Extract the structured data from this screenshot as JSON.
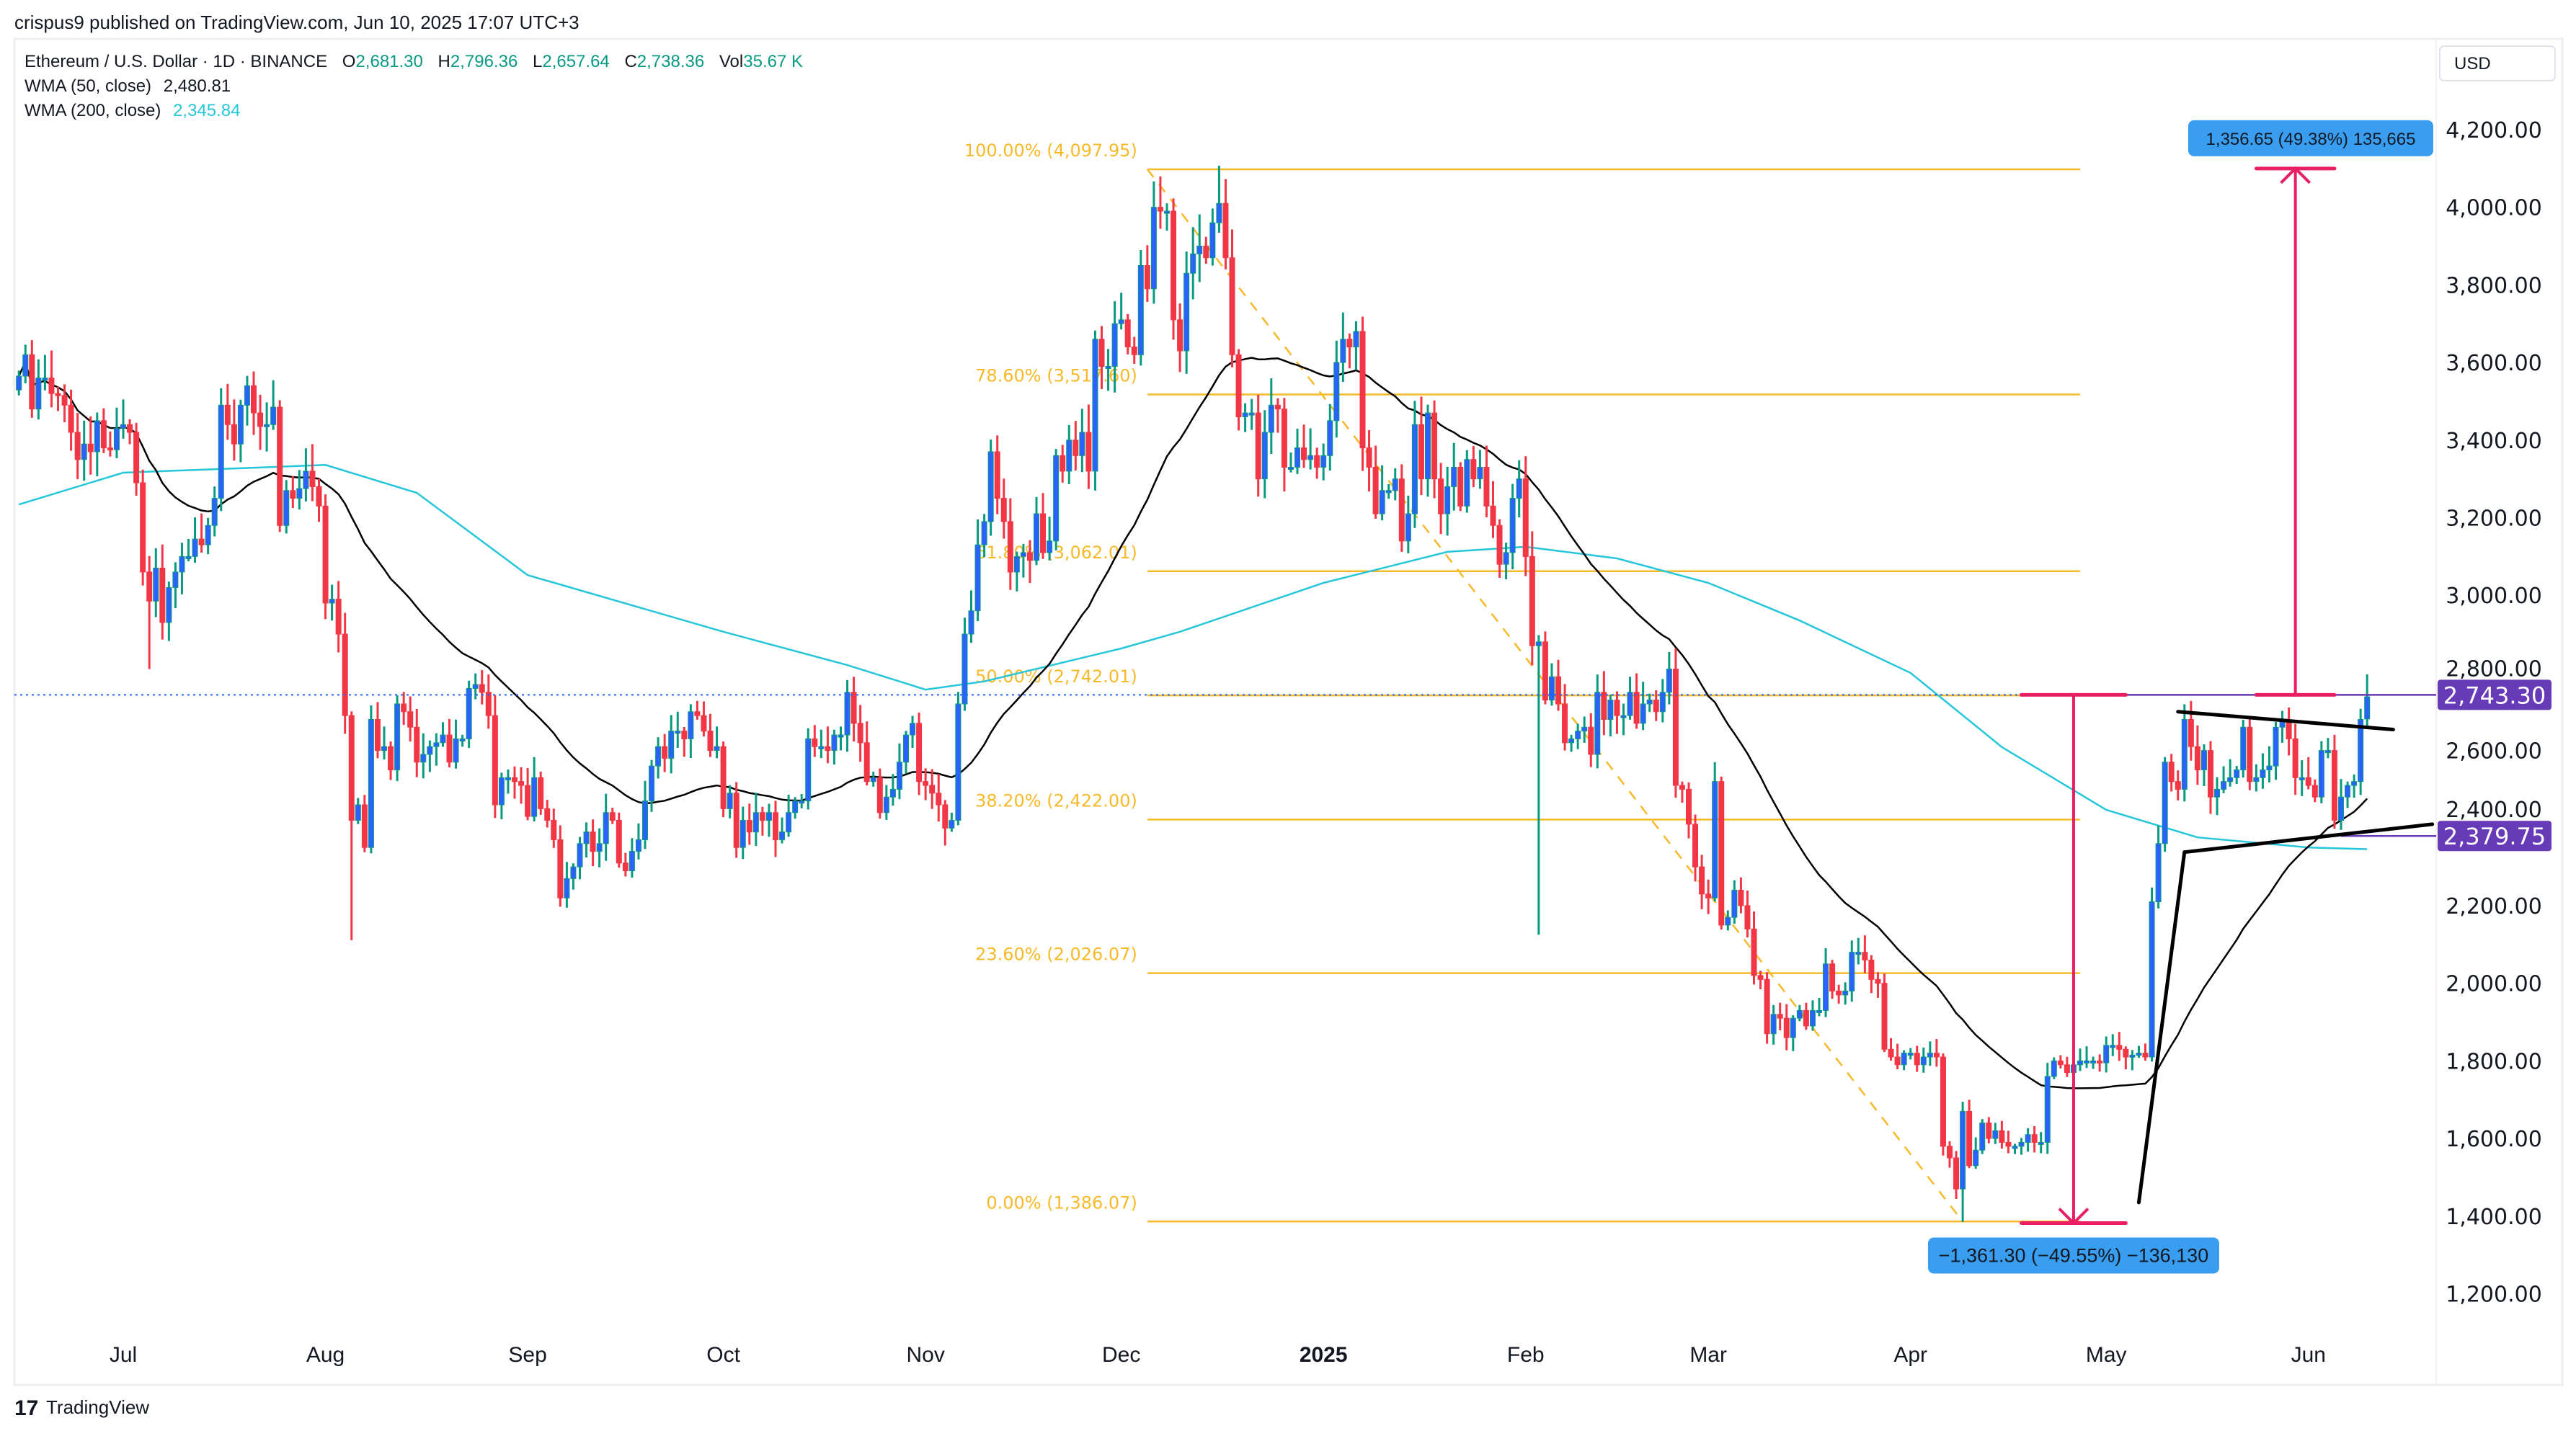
{
  "header": {
    "published": "crispus9 published on TradingView.com, Jun 10, 2025 17:07 UTC+3"
  },
  "legend": {
    "symbol": "Ethereum / U.S. Dollar · 1D · BINANCE",
    "o_label": "O",
    "o": "2,681.30",
    "h_label": "H",
    "h": "2,796.36",
    "l_label": "L",
    "l": "2,657.64",
    "c_label": "C",
    "c": "2,738.36",
    "vol_label": "Vol",
    "vol": "35.67 K",
    "wma50_label": "WMA (50, close)",
    "wma50": "2,480.81",
    "wma200_label": "WMA (200, close)",
    "wma200": "2,345.84"
  },
  "currency": "USD",
  "footer": {
    "brand": "TradingView"
  },
  "colors": {
    "up_body": "#2962ff",
    "up_wick": "#089981",
    "down": "#f23645",
    "wma50": "#000000",
    "wma200": "#26c6da",
    "fib": "#f7b928",
    "measure": "#e91e63",
    "measure_label": "#3a9ef0",
    "price_label": "#673ab7",
    "legend_value": "#089981"
  },
  "chart_data": {
    "type": "candlestick",
    "title": "Ethereum / U.S. Dollar · 1D · BINANCE",
    "ylim": [
      1100,
      4300
    ],
    "xlim": [
      "2024-06-15",
      "2025-06-20"
    ],
    "grid": false,
    "y_ticks": [
      "4,200.00",
      "4,000.00",
      "3,800.00",
      "3,600.00",
      "3,400.00",
      "3,200.00",
      "3,000.00",
      "2,800.00",
      "2,600.00",
      "2,400.00",
      "2,200.00",
      "2,000.00",
      "1,800.00",
      "1,600.00",
      "1,400.00",
      "1,200.00"
    ],
    "y_tick_values": [
      4200,
      4000,
      3800,
      3600,
      3400,
      3200,
      3000,
      2800,
      2600,
      2400,
      2200,
      2000,
      1800,
      1600,
      1400,
      1200
    ],
    "x_ticks": [
      {
        "label": "Jul",
        "date": "2024-07-01",
        "bold": false
      },
      {
        "label": "Aug",
        "date": "2024-08-01",
        "bold": false
      },
      {
        "label": "Sep",
        "date": "2024-09-01",
        "bold": false
      },
      {
        "label": "Oct",
        "date": "2024-10-01",
        "bold": false
      },
      {
        "label": "Nov",
        "date": "2024-11-01",
        "bold": false
      },
      {
        "label": "Dec",
        "date": "2024-12-01",
        "bold": false
      },
      {
        "label": "2025",
        "date": "2025-01-01",
        "bold": true
      },
      {
        "label": "Feb",
        "date": "2025-02-01",
        "bold": false
      },
      {
        "label": "Mar",
        "date": "2025-03-01",
        "bold": false
      },
      {
        "label": "Apr",
        "date": "2025-04-01",
        "bold": false
      },
      {
        "label": "May",
        "date": "2025-05-01",
        "bold": false
      },
      {
        "label": "Jun",
        "date": "2025-06-01",
        "bold": false
      }
    ],
    "closes_by_month": [
      {
        "from": "2024-06-15",
        "closes": [
          3565,
          3620,
          3480,
          3560,
          3560,
          3520,
          3515,
          3490,
          3420,
          3350,
          3390,
          3370,
          3450,
          3380,
          3375,
          3430
        ]
      },
      {
        "from": "2024-07-01",
        "closes": [
          3440,
          3420,
          3290,
          3060,
          2985,
          3070,
          2930,
          3020,
          3060,
          3100,
          3100,
          3145,
          3130,
          3180,
          3250,
          3490,
          3440,
          3390,
          3490,
          3540,
          3470,
          3435,
          3440,
          3485,
          3180,
          3270,
          3250,
          3275,
          3320,
          3280,
          3230
        ]
      },
      {
        "from": "2024-08-01",
        "closes": [
          2980,
          2990,
          2900,
          2690,
          2420,
          2460,
          2350,
          2680,
          2600,
          2610,
          2550,
          2720,
          2700,
          2660,
          2570,
          2590,
          2610,
          2620,
          2640,
          2570,
          2630,
          2630,
          2760,
          2770,
          2750,
          2690,
          2460,
          2530,
          2530,
          2520,
          2510
        ]
      },
      {
        "from": "2024-09-01",
        "closes": [
          2430,
          2530,
          2450,
          2420,
          2370,
          2220,
          2270,
          2300,
          2360,
          2390,
          2340,
          2360,
          2440,
          2420,
          2310,
          2290,
          2340,
          2370,
          2470,
          2560,
          2610,
          2580,
          2650,
          2650,
          2630,
          2700,
          2690,
          2650,
          2600,
          2610
        ]
      },
      {
        "from": "2024-10-01",
        "closes": [
          2450,
          2490,
          2350,
          2420,
          2390,
          2440,
          2420,
          2440,
          2370,
          2390,
          2440,
          2470,
          2470,
          2630,
          2610,
          2610,
          2600,
          2640,
          2640,
          2750,
          2670,
          2620,
          2520,
          2530,
          2440,
          2480,
          2500,
          2570,
          2640,
          2670,
          2520
        ]
      },
      {
        "from": "2024-11-01",
        "closes": [
          2510,
          2490,
          2460,
          2400,
          2420,
          2720,
          2900,
          2960,
          3130,
          3190,
          3370,
          3250,
          3190,
          3060,
          3100,
          3110,
          3090,
          3210,
          3110,
          3140,
          3360,
          3320,
          3400,
          3360,
          3420,
          3320,
          3660,
          3590,
          3590,
          3700
        ]
      },
      {
        "from": "2024-12-01",
        "closes": [
          3710,
          3640,
          3620,
          3850,
          3790,
          4000,
          3990,
          3990,
          3710,
          3630,
          3830,
          3880,
          3900,
          3870,
          3960,
          4010,
          3870,
          3620,
          3460,
          3470,
          3470,
          3300,
          3420,
          3490,
          3480,
          3330,
          3330,
          3380,
          3350,
          3360,
          3330
        ]
      },
      {
        "from": "2025-01-01",
        "closes": [
          3360,
          3450,
          3600,
          3660,
          3640,
          3680,
          3380,
          3330,
          3210,
          3270,
          3270,
          3300,
          3140,
          3210,
          3440,
          3300,
          3470,
          3300,
          3210,
          3280,
          3330,
          3230,
          3350,
          3300,
          3330,
          3230,
          3180,
          3080,
          3110,
          3250,
          3300
        ]
      },
      {
        "from": "2025-02-01",
        "closes": [
          3100,
          2870,
          2880,
          2730,
          2790,
          2720,
          2620,
          2630,
          2650,
          2660,
          2590,
          2750,
          2680,
          2730,
          2690,
          2690,
          2750,
          2670,
          2720,
          2730,
          2700,
          2750,
          2810,
          2510,
          2500,
          2410,
          2300,
          2230
        ]
      },
      {
        "from": "2025-03-01",
        "closes": [
          2220,
          2520,
          2150,
          2170,
          2240,
          2200,
          2140,
          2020,
          2010,
          1870,
          1920,
          1910,
          1860,
          1910,
          1930,
          1890,
          1930,
          1930,
          2050,
          1980,
          1970,
          1980,
          2080,
          2080,
          2060,
          2010,
          2000,
          1830,
          1810,
          1790,
          1820
        ]
      },
      {
        "from": "2025-04-01",
        "closes": [
          1820,
          1790,
          1810,
          1820,
          1810,
          1580,
          1550,
          1470,
          1670,
          1530,
          1570,
          1640,
          1600,
          1620,
          1590,
          1580,
          1580,
          1590,
          1610,
          1590,
          1590,
          1760,
          1800,
          1790,
          1770,
          1790,
          1800,
          1800,
          1800,
          1795
        ]
      },
      {
        "from": "2025-05-01",
        "closes": [
          1840,
          1840,
          1830,
          1810,
          1815,
          1820,
          1810,
          2210,
          2360,
          2570,
          2520,
          2500,
          2680,
          2610,
          2550,
          2600,
          2480,
          2500,
          2520,
          2530,
          2550,
          2660,
          2520,
          2530,
          2550,
          2560,
          2660,
          2680,
          2630,
          2530,
          2530
        ]
      },
      {
        "from": "2025-06-01",
        "closes": [
          2510,
          2480,
          2600,
          2600,
          2420,
          2480,
          2510,
          2520,
          2680,
          2738.36
        ]
      }
    ],
    "notable_extremes": [
      {
        "date": "2024-07-05",
        "low": 2810
      },
      {
        "date": "2024-08-05",
        "low": 2111
      },
      {
        "date": "2024-12-16",
        "high": 4107
      },
      {
        "date": "2025-02-03",
        "low": 2125
      },
      {
        "date": "2025-04-09",
        "low": 1385
      },
      {
        "date": "2025-06-10",
        "open": 2681.3,
        "high": 2796.36,
        "low": 2657.64
      }
    ],
    "wma200_points": [
      [
        "2024-06-15",
        3234
      ],
      [
        "2024-07-01",
        3316
      ],
      [
        "2024-08-01",
        3336
      ],
      [
        "2024-08-15",
        3264
      ],
      [
        "2024-09-01",
        3052
      ],
      [
        "2024-10-01",
        2906
      ],
      [
        "2024-10-20",
        2820
      ],
      [
        "2024-11-01",
        2757
      ],
      [
        "2024-11-10",
        2778
      ],
      [
        "2024-12-01",
        2863
      ],
      [
        "2024-12-10",
        2906
      ],
      [
        "2025-01-01",
        3032
      ],
      [
        "2025-01-20",
        3112
      ],
      [
        "2025-02-01",
        3125
      ],
      [
        "2025-02-15",
        3095
      ],
      [
        "2025-03-01",
        3032
      ],
      [
        "2025-03-15",
        2935
      ],
      [
        "2025-04-01",
        2800
      ],
      [
        "2025-04-15",
        2609
      ],
      [
        "2025-05-01",
        2447
      ],
      [
        "2025-05-15",
        2376
      ],
      [
        "2025-06-01",
        2350
      ],
      [
        "2025-06-10",
        2345.84
      ]
    ],
    "fibonacci": {
      "from": {
        "date": "2024-12-05",
        "price": 4097.95
      },
      "to": {
        "date": "2025-04-09",
        "price": 1386.07
      },
      "levels": [
        {
          "label": "100.00% (4,097.95)",
          "price": 4097.95
        },
        {
          "label": "78.60% (3,517.60)",
          "price": 3517.6
        },
        {
          "label": "61.80% (3,062.01)",
          "price": 3062.01
        },
        {
          "label": "50.00% (2,742.01)",
          "price": 2742.01
        },
        {
          "label": "38.20% (2,422.00)",
          "price": 2422.0
        },
        {
          "label": "23.60% (2,026.07)",
          "price": 2026.07
        },
        {
          "label": "0.00% (1,386.07)",
          "price": 1386.07
        }
      ],
      "end_date": "2025-04-27"
    },
    "price_labels": [
      {
        "label": "2,743.30",
        "price": 2743.3,
        "line_from": "2025-04-24"
      },
      {
        "label": "2,379.75",
        "price": 2379.75,
        "line_from": "2025-06-06"
      }
    ],
    "current_price": 2743.3,
    "measures": [
      {
        "label": "−1,361.30 (−49.55%) −136,130",
        "date": "2025-04-26",
        "from": 2743.3,
        "to": 1382,
        "cap_from": "2025-04-18",
        "cap_to": "2025-05-04"
      },
      {
        "label": "1,356.65 (49.38%) 135,665",
        "date": "2025-05-30",
        "from": 2743.3,
        "to": 4100,
        "cap_from": "2025-05-24",
        "cap_to": "2025-06-05"
      }
    ],
    "trendlines": [
      {
        "from": [
          "2025-05-12",
          2700
        ],
        "to": [
          "2025-06-14",
          2654
        ]
      },
      {
        "from": [
          "2025-05-13",
          2338
        ],
        "to": [
          "2025-06-20",
          2410
        ]
      },
      {
        "from": [
          "2025-05-06",
          1435
        ],
        "to": [
          "2025-05-13",
          2338
        ]
      }
    ]
  }
}
